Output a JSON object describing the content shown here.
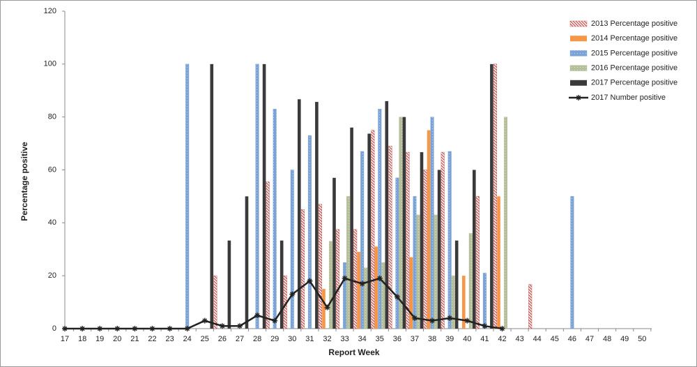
{
  "chart_data": {
    "type": "bar",
    "x_label": "Report Week",
    "y_label": "Percentage positive",
    "categories": [
      "17",
      "18",
      "19",
      "20",
      "21",
      "22",
      "23",
      "24",
      "25",
      "26",
      "27",
      "28",
      "29",
      "30",
      "31",
      "32",
      "33",
      "34",
      "35",
      "36",
      "37",
      "38",
      "39",
      "40",
      "41",
      "42",
      "43",
      "44",
      "45",
      "46",
      "47",
      "48",
      "49",
      "50"
    ],
    "ylim": [
      0,
      120
    ],
    "yticks": [
      0,
      20,
      40,
      60,
      80,
      100,
      120
    ],
    "legend": "top-right",
    "series": [
      {
        "name": "2013 Percentage positive",
        "color": "#c0504d",
        "pattern": "hatch",
        "values": [
          null,
          null,
          null,
          null,
          null,
          null,
          null,
          null,
          null,
          20,
          null,
          null,
          55.5,
          20,
          45,
          47,
          37.5,
          37.5,
          75,
          69,
          66.7,
          60,
          66.7,
          null,
          50,
          100,
          null,
          16.7,
          null,
          null,
          null,
          null,
          null,
          null
        ]
      },
      {
        "name": "2014 Percentage positive",
        "color": "#f79646",
        "pattern": "solid",
        "values": [
          null,
          null,
          null,
          null,
          null,
          null,
          null,
          null,
          null,
          null,
          null,
          null,
          null,
          null,
          null,
          15,
          null,
          29,
          31,
          null,
          27,
          75,
          null,
          20,
          null,
          50,
          null,
          null,
          null,
          null,
          null,
          null,
          null,
          null
        ]
      },
      {
        "name": "2015 Percentage positive",
        "color": "#7ba3d6",
        "pattern": "dots",
        "values": [
          null,
          null,
          null,
          null,
          null,
          null,
          null,
          100,
          null,
          null,
          null,
          100,
          83,
          60,
          73,
          null,
          25,
          67,
          83,
          57,
          50,
          80,
          67,
          null,
          21,
          null,
          null,
          null,
          null,
          50,
          null,
          null,
          null,
          null
        ]
      },
      {
        "name": "2016 Percentage positive",
        "color": "#b5bf9a",
        "pattern": "dots",
        "values": [
          null,
          null,
          null,
          null,
          null,
          null,
          null,
          null,
          null,
          null,
          null,
          null,
          null,
          null,
          null,
          33,
          50,
          23,
          25,
          80,
          43,
          43,
          20,
          36,
          null,
          80,
          null,
          null,
          null,
          null,
          null,
          null,
          null,
          null
        ]
      },
      {
        "name": "2017 Percentage positive",
        "color": "#3a3a3a",
        "pattern": "solid",
        "values": [
          null,
          null,
          null,
          null,
          null,
          null,
          null,
          null,
          100,
          33.3,
          50,
          100,
          33.3,
          86.7,
          85.7,
          57,
          76,
          73.7,
          86,
          80,
          66.7,
          60,
          33.3,
          60,
          100,
          null,
          null,
          null,
          null,
          null,
          null,
          null,
          null,
          null
        ]
      },
      {
        "name": "2017 Number positive",
        "color": "#222222",
        "type": "line",
        "values": [
          0,
          0,
          0,
          0,
          0,
          0,
          0,
          0,
          3,
          1,
          1,
          5,
          3,
          13,
          18,
          8,
          19,
          17,
          19,
          12,
          4,
          3,
          4,
          3,
          1,
          0,
          null,
          null,
          null,
          null,
          null,
          null,
          null,
          null
        ]
      }
    ]
  }
}
